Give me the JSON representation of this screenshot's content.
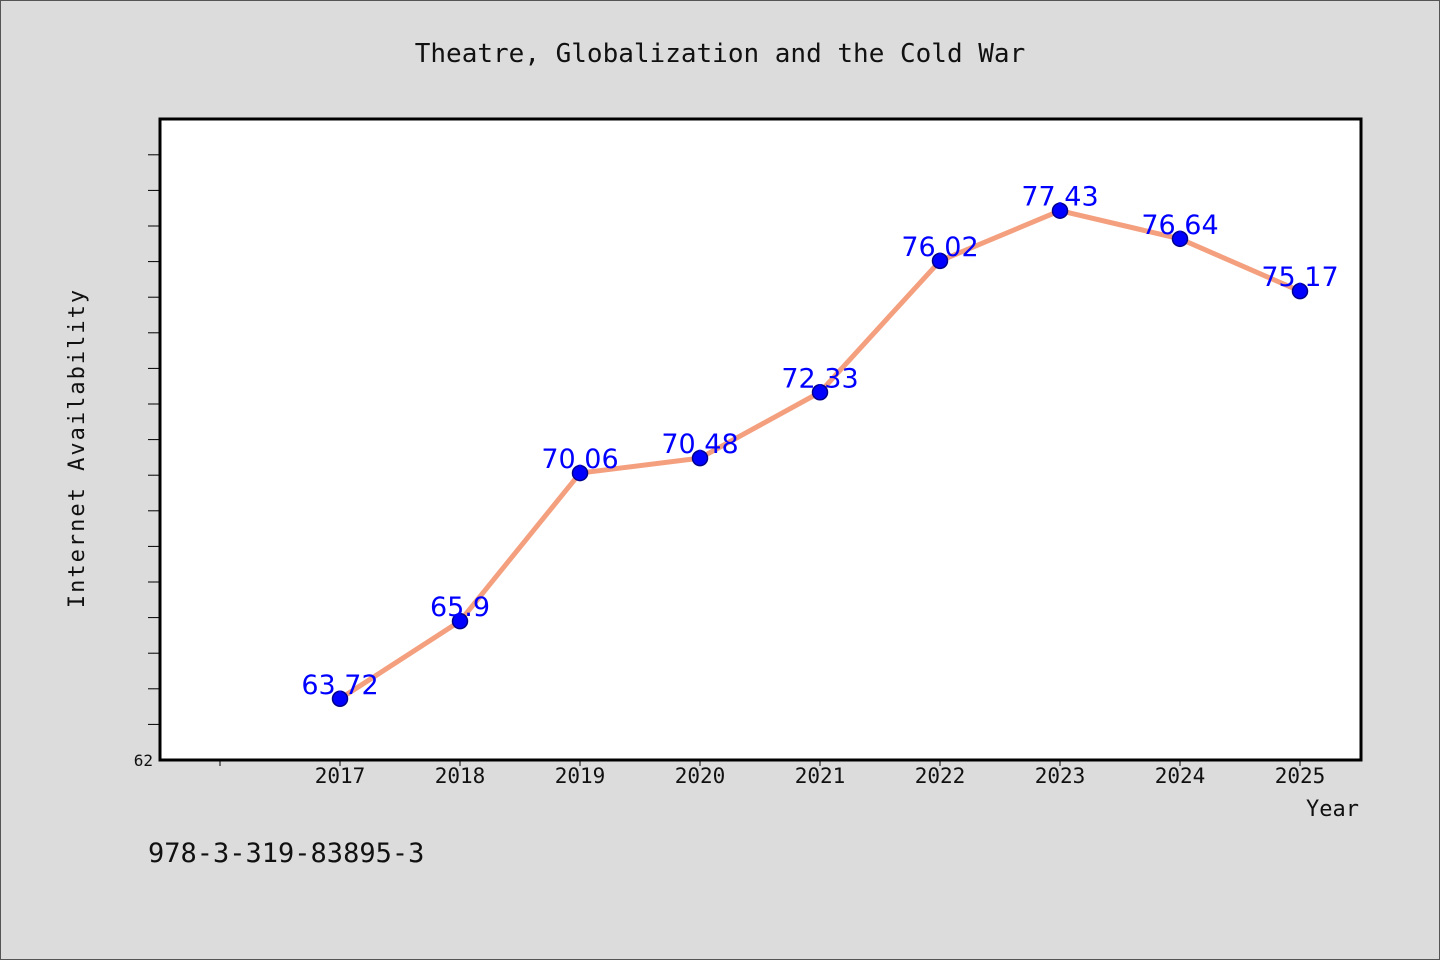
{
  "chart_data": {
    "type": "line",
    "title": "Theatre, Globalization and the Cold War",
    "xlabel": "Year",
    "ylabel": "Internet Availability",
    "categories": [
      "2017",
      "2018",
      "2019",
      "2020",
      "2021",
      "2022",
      "2023",
      "2024",
      "2025"
    ],
    "values": [
      63.72,
      65.9,
      70.06,
      70.48,
      72.33,
      76.02,
      77.43,
      76.64,
      75.17
    ],
    "data_labels": [
      "63.72",
      "65.9",
      "70.06",
      "70.48",
      "72.33",
      "76.02",
      "77.43",
      "76.64",
      "75.17"
    ],
    "ylim": [
      62,
      80
    ],
    "y_tick_labels": [
      "62"
    ],
    "grid": false,
    "legend": "none",
    "colors": {
      "line": "#f4a07f",
      "marker": "#0000ff",
      "marker_edge": "#00008b",
      "data_label": "#0000ff",
      "plot_background": "#ffffff",
      "page_background": "#dcdcdc"
    }
  },
  "footnote": "978-3-319-83895-3"
}
